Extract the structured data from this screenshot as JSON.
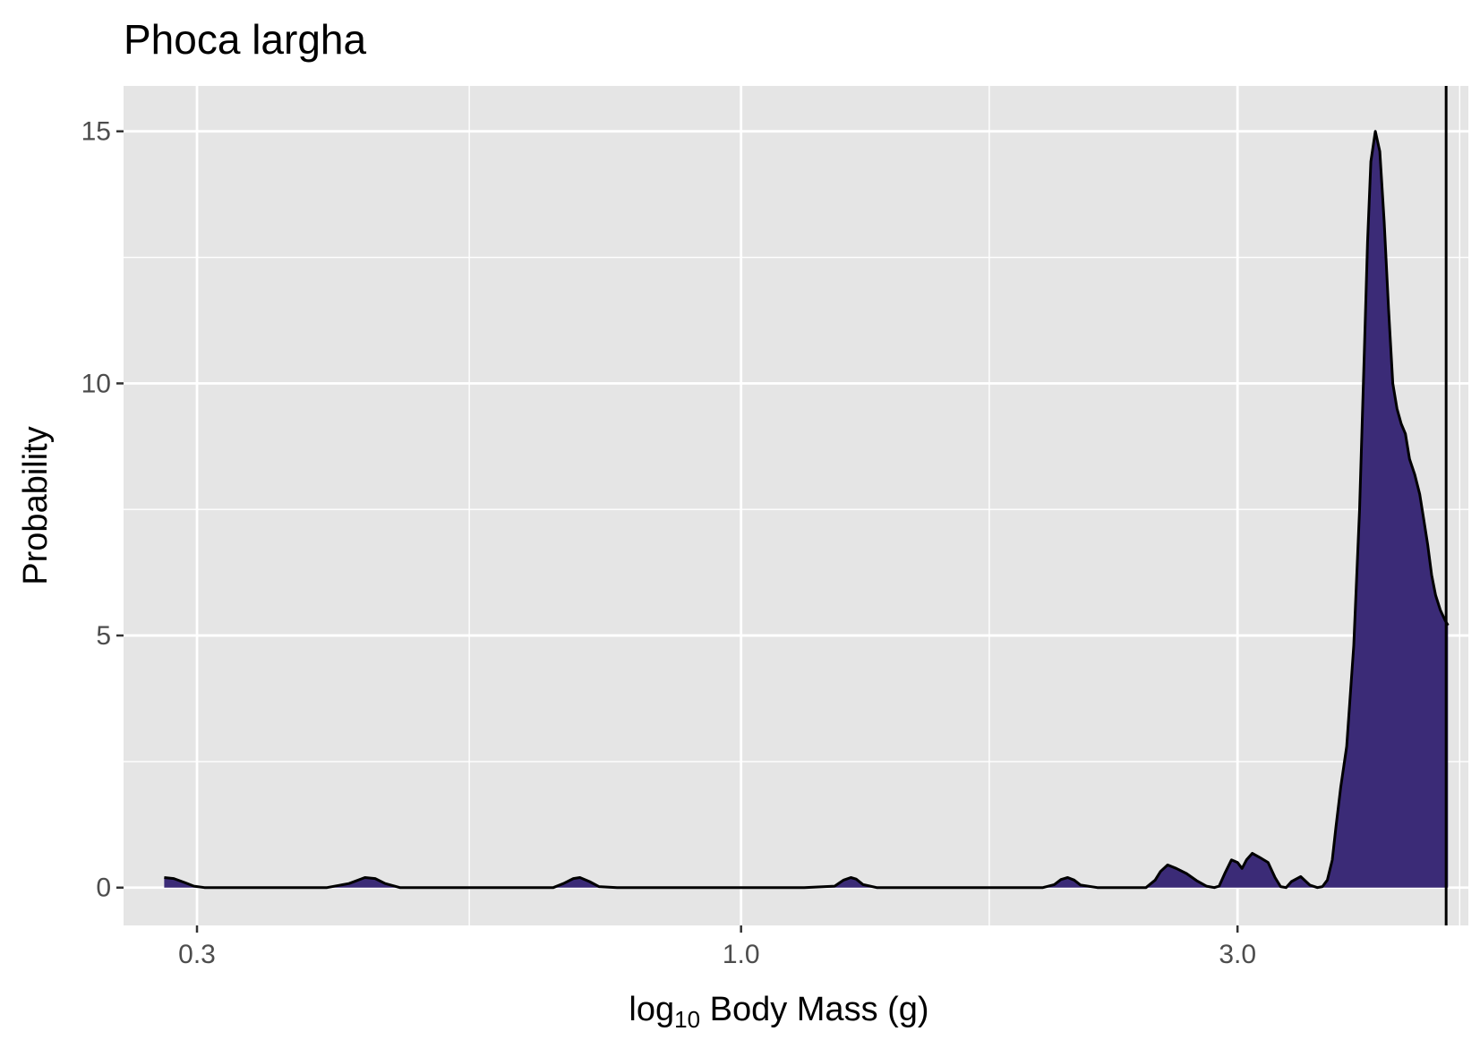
{
  "chart_data": {
    "type": "area",
    "title": "Phoca largha",
    "xlabel": {
      "prefix": "log",
      "subscript": "10",
      "suffix": " Body Mass (g)"
    },
    "ylabel": "Probability",
    "x_scale": "log10",
    "xlim": [
      0.255,
      5.0
    ],
    "ylim": [
      -0.75,
      15.9
    ],
    "x_ticks": [
      {
        "value": 0.3,
        "label": "0.3"
      },
      {
        "value": 1.0,
        "label": "1.0"
      },
      {
        "value": 3.0,
        "label": "3.0"
      }
    ],
    "x_minor_ticks": [
      0.548,
      1.732,
      4.905
    ],
    "y_ticks": [
      {
        "value": 0,
        "label": "0"
      },
      {
        "value": 5,
        "label": "5"
      },
      {
        "value": 10,
        "label": "10"
      },
      {
        "value": 15,
        "label": "15"
      }
    ],
    "y_minor_ticks": [
      2.5,
      7.5,
      12.5
    ],
    "grid": true,
    "fill_color": "#3b2b77",
    "line_color": "#000000",
    "panel_color": "#e5e5e5",
    "grid_color": "#ffffff",
    "reference_line_x": 4.76,
    "density": {
      "x": [
        0.279,
        0.285,
        0.292,
        0.298,
        0.305,
        0.33,
        0.37,
        0.4,
        0.42,
        0.435,
        0.445,
        0.455,
        0.47,
        0.49,
        0.55,
        0.62,
        0.66,
        0.675,
        0.69,
        0.7,
        0.715,
        0.73,
        0.76,
        0.85,
        1.0,
        1.15,
        1.23,
        1.255,
        1.275,
        1.29,
        1.31,
        1.35,
        1.5,
        1.75,
        1.95,
        2.0,
        2.03,
        2.06,
        2.09,
        2.12,
        2.2,
        2.35,
        2.45,
        2.5,
        2.53,
        2.57,
        2.62,
        2.68,
        2.74,
        2.8,
        2.85,
        2.88,
        2.92,
        2.96,
        3.0,
        3.03,
        3.06,
        3.1,
        3.15,
        3.21,
        3.26,
        3.3,
        3.34,
        3.38,
        3.45,
        3.52,
        3.58,
        3.62,
        3.66,
        3.7,
        3.73,
        3.77,
        3.82,
        3.88,
        3.93,
        3.97,
        4.0,
        4.03,
        4.07,
        4.11,
        4.15,
        4.19,
        4.23,
        4.27,
        4.31,
        4.35,
        4.39,
        4.44,
        4.49,
        4.53,
        4.57,
        4.61,
        4.65,
        4.7,
        4.75,
        4.78
      ],
      "y": [
        0.2,
        0.18,
        0.1,
        0.03,
        0.0,
        0.0,
        0.0,
        0.0,
        0.08,
        0.2,
        0.18,
        0.08,
        0.0,
        0.0,
        0.0,
        0.0,
        0.0,
        0.08,
        0.18,
        0.2,
        0.12,
        0.02,
        0.0,
        0.0,
        0.0,
        0.0,
        0.03,
        0.15,
        0.2,
        0.17,
        0.06,
        0.0,
        0.0,
        0.0,
        0.0,
        0.06,
        0.16,
        0.2,
        0.15,
        0.05,
        0.0,
        0.0,
        0.0,
        0.15,
        0.32,
        0.45,
        0.38,
        0.28,
        0.14,
        0.03,
        0.0,
        0.03,
        0.3,
        0.55,
        0.5,
        0.38,
        0.55,
        0.68,
        0.6,
        0.5,
        0.2,
        0.02,
        0.0,
        0.12,
        0.22,
        0.05,
        0.0,
        0.02,
        0.15,
        0.55,
        1.2,
        2.0,
        2.8,
        4.8,
        7.5,
        10.5,
        12.8,
        14.4,
        15.0,
        14.6,
        13.2,
        11.5,
        10.0,
        9.5,
        9.2,
        9.0,
        8.5,
        8.2,
        7.8,
        7.3,
        6.8,
        6.2,
        5.8,
        5.5,
        5.3,
        5.2
      ]
    }
  }
}
